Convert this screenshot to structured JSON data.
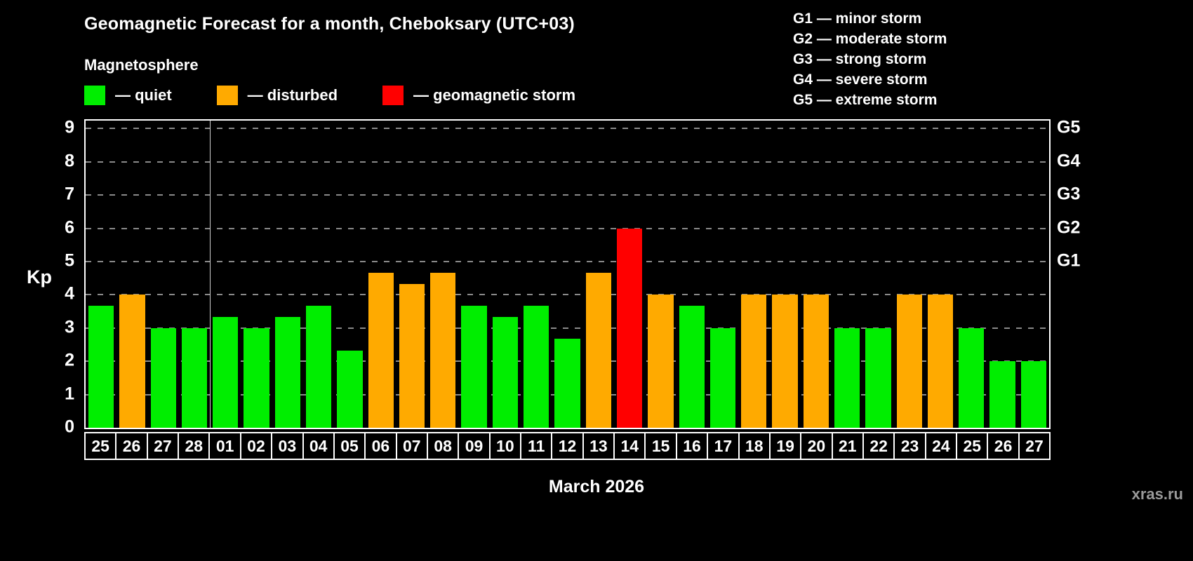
{
  "header": {
    "title": "Geomagnetic Forecast for a month, Cheboksary (UTC+03)",
    "subtitle": "Magnetosphere",
    "legend": [
      {
        "key": "quiet",
        "label": "— quiet",
        "color": "#00ee00"
      },
      {
        "key": "disturbed",
        "label": "— disturbed",
        "color": "#ffaa00"
      },
      {
        "key": "storm",
        "label": "— geomagnetic storm",
        "color": "#ff0000"
      }
    ],
    "g_legend": [
      "G1 — minor storm",
      "G2 — moderate storm",
      "G3 — strong storm",
      "G4 — severe storm",
      "G5 — extreme storm"
    ]
  },
  "chart_data": {
    "type": "bar",
    "title": "Geomagnetic Forecast for a month, Cheboksary (UTC+03)",
    "subtitle": "Magnetosphere",
    "xlabel": "March 2026",
    "ylabel": "Kp",
    "ylim": [
      0,
      9
    ],
    "yticks": [
      0,
      1,
      2,
      3,
      4,
      5,
      6,
      7,
      8,
      9
    ],
    "grid": true,
    "legend_position": "top",
    "right_axis": [
      {
        "label": "G1",
        "value": 5
      },
      {
        "label": "G2",
        "value": 6
      },
      {
        "label": "G3",
        "value": 7
      },
      {
        "label": "G4",
        "value": 8
      },
      {
        "label": "G5",
        "value": 9
      }
    ],
    "categories": [
      "25",
      "26",
      "27",
      "28",
      "01",
      "02",
      "03",
      "04",
      "05",
      "06",
      "07",
      "08",
      "09",
      "10",
      "11",
      "12",
      "13",
      "14",
      "15",
      "16",
      "17",
      "18",
      "19",
      "20",
      "21",
      "22",
      "23",
      "24",
      "25",
      "26",
      "27"
    ],
    "values": [
      3.67,
      4,
      3,
      3,
      3.33,
      3,
      3.33,
      3.67,
      2.33,
      4.67,
      4.33,
      4.67,
      3.67,
      3.33,
      3.67,
      2.67,
      4.67,
      6,
      4,
      3.67,
      3,
      4,
      4,
      4,
      3,
      3,
      4,
      4,
      3,
      2,
      2
    ],
    "statuses": [
      "quiet",
      "disturbed",
      "quiet",
      "quiet",
      "quiet",
      "quiet",
      "quiet",
      "quiet",
      "quiet",
      "disturbed",
      "disturbed",
      "disturbed",
      "quiet",
      "quiet",
      "quiet",
      "quiet",
      "disturbed",
      "storm",
      "disturbed",
      "quiet",
      "quiet",
      "disturbed",
      "disturbed",
      "disturbed",
      "quiet",
      "quiet",
      "disturbed",
      "disturbed",
      "quiet",
      "quiet",
      "quiet"
    ],
    "status_colors": {
      "quiet": "#00ee00",
      "disturbed": "#ffaa00",
      "storm": "#ff0000"
    },
    "month_separator_after_index": 3
  },
  "footer": {
    "month_label": "March 2026",
    "watermark": "xras.ru"
  }
}
